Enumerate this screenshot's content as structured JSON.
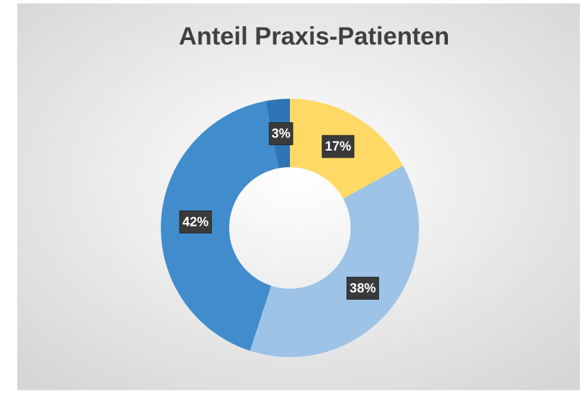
{
  "chart_data": {
    "type": "donut",
    "title": "Anteil Praxis-Patienten",
    "values": [
      17,
      38,
      42,
      3
    ],
    "value_labels": [
      "17%",
      "38%",
      "42%",
      "3%"
    ],
    "colors": [
      "#ffd966",
      "#9dc3e6",
      "#418ccc",
      "#2e75b6"
    ]
  }
}
